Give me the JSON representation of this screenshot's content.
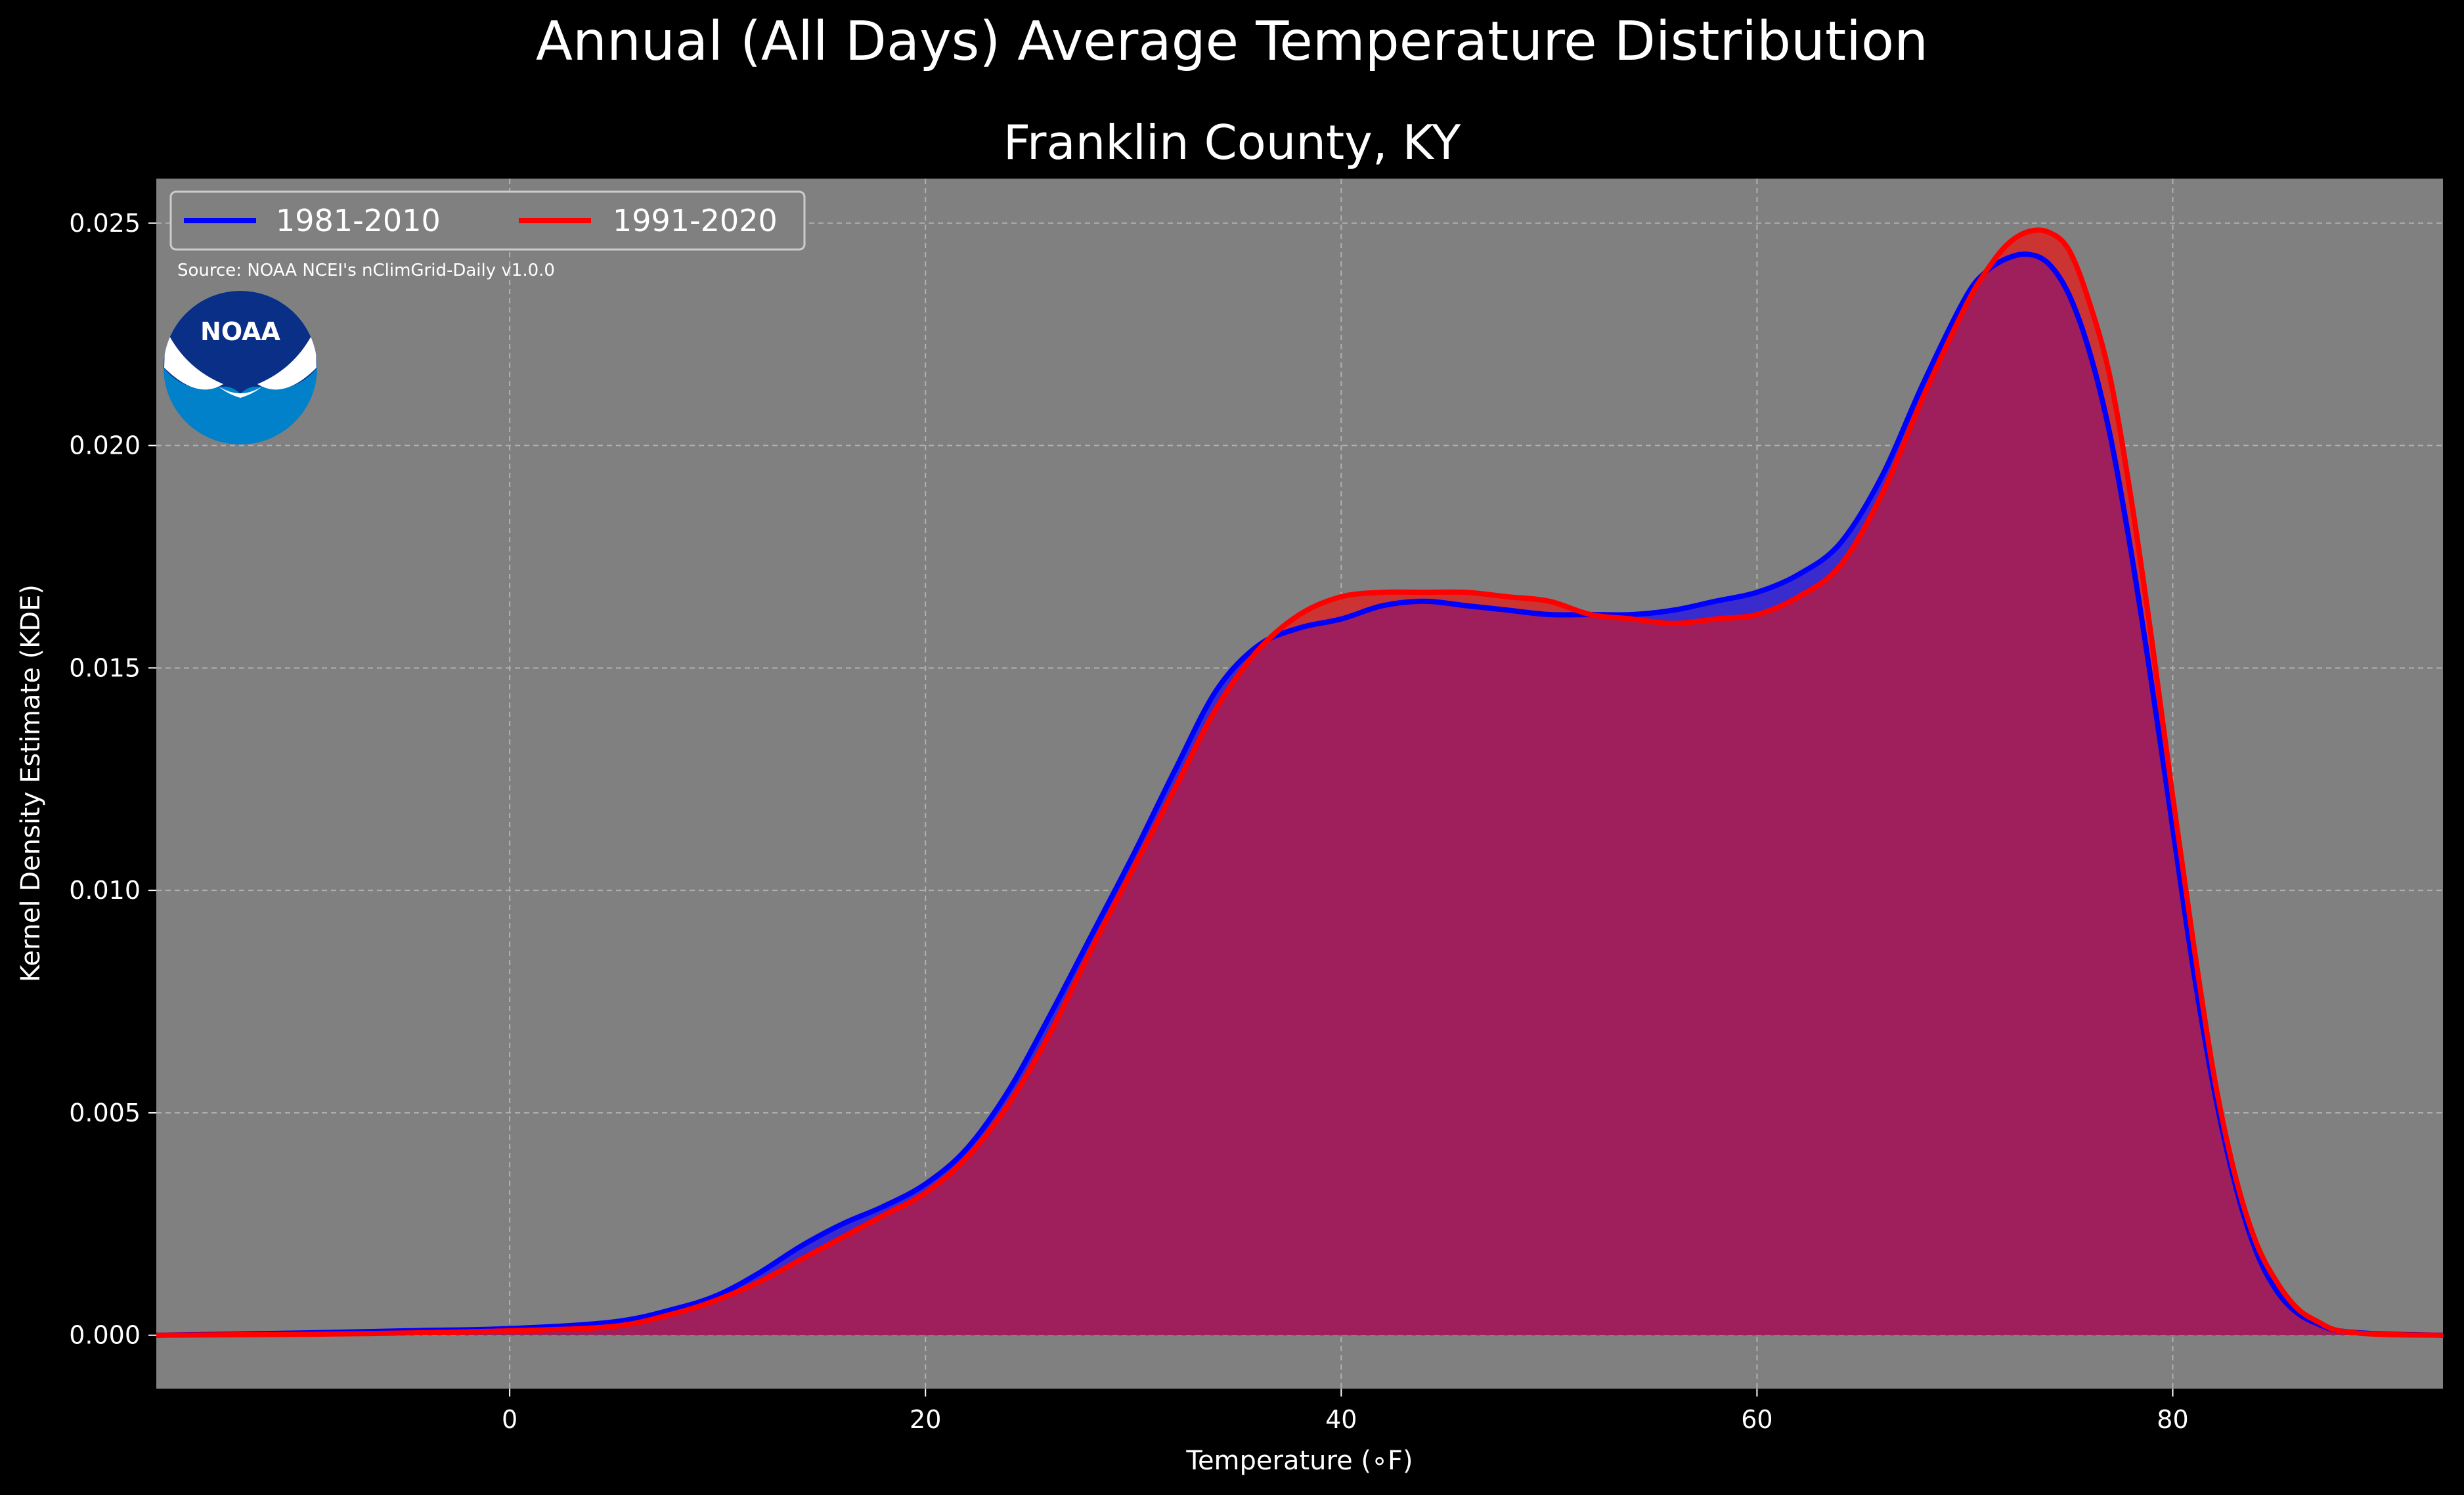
{
  "figure": {
    "suptitle": "Annual (All Days) Average Temperature Distribution",
    "source": "Source: NOAA NCEI's nClimGrid-Daily v1.0.0",
    "logo_text": "NOAA",
    "background_color": "#000000",
    "axes_color": "#808080"
  },
  "chart_data": {
    "type": "area",
    "title": "Franklin County, KY",
    "xlabel": "Temperature ($^\\circ$F)",
    "xlabel_display": "Temperature (∘F)",
    "ylabel": "Kernel Density Estimate (KDE)",
    "xlim": [
      -17,
      93
    ],
    "ylim": [
      -0.0012,
      0.026
    ],
    "xticks": [
      0,
      20,
      40,
      60,
      80
    ],
    "xtick_labels": [
      "0",
      "20",
      "40",
      "60",
      "80"
    ],
    "yticks": [
      0.0,
      0.005,
      0.01,
      0.015,
      0.02,
      0.025
    ],
    "ytick_labels": [
      "0.000",
      "0.005",
      "0.010",
      "0.015",
      "0.020",
      "0.025"
    ],
    "grid": true,
    "legend_position": "top-left",
    "series": [
      {
        "name": "1981-2010",
        "color": "#0000ff",
        "fill": "#3a2ccc",
        "x": [
          -17,
          -10,
          -5,
          0,
          5,
          8,
          10,
          12,
          14,
          16,
          18,
          20,
          22,
          24,
          26,
          28,
          30,
          32,
          34,
          36,
          38,
          40,
          42,
          44,
          46,
          48,
          50,
          52,
          54,
          56,
          58,
          60,
          62,
          64,
          66,
          68,
          70,
          71,
          72,
          73,
          74,
          75,
          76,
          77,
          78,
          79,
          80,
          81,
          82,
          83,
          84,
          85,
          86,
          87,
          88,
          90,
          93
        ],
        "y": [
          0.0,
          5e-05,
          0.0001,
          0.00015,
          0.0003,
          0.0006,
          0.0009,
          0.0014,
          0.002,
          0.0025,
          0.0029,
          0.0034,
          0.0042,
          0.0055,
          0.0072,
          0.009,
          0.0108,
          0.0127,
          0.0145,
          0.0155,
          0.0159,
          0.0161,
          0.0164,
          0.0165,
          0.0164,
          0.0163,
          0.0162,
          0.0162,
          0.0162,
          0.0163,
          0.0165,
          0.0167,
          0.0171,
          0.0178,
          0.0193,
          0.0214,
          0.0233,
          0.0239,
          0.0242,
          0.0243,
          0.0241,
          0.0234,
          0.0221,
          0.0202,
          0.0176,
          0.0146,
          0.0114,
          0.0082,
          0.0055,
          0.0034,
          0.0019,
          0.001,
          0.0005,
          0.00025,
          0.0001,
          3e-05,
          0.0
        ]
      },
      {
        "name": "1991-2020",
        "color": "#ff0000",
        "fill": "#cc3333",
        "x": [
          -17,
          -10,
          -5,
          0,
          5,
          8,
          10,
          12,
          14,
          16,
          18,
          20,
          22,
          24,
          26,
          28,
          30,
          32,
          34,
          36,
          38,
          40,
          42,
          44,
          46,
          48,
          50,
          52,
          54,
          56,
          58,
          60,
          62,
          64,
          66,
          68,
          70,
          71,
          72,
          73,
          74,
          75,
          76,
          77,
          78,
          79,
          80,
          81,
          82,
          83,
          84,
          85,
          86,
          87,
          88,
          90,
          93
        ],
        "y": [
          0.0,
          2e-05,
          5e-05,
          0.0001,
          0.0002,
          0.0005,
          0.0008,
          0.0012,
          0.0017,
          0.0022,
          0.0027,
          0.0032,
          0.004,
          0.0052,
          0.0068,
          0.0087,
          0.0105,
          0.0123,
          0.0141,
          0.0154,
          0.0162,
          0.0166,
          0.0167,
          0.0167,
          0.0167,
          0.0166,
          0.0165,
          0.0162,
          0.0161,
          0.016,
          0.0161,
          0.0162,
          0.0166,
          0.0173,
          0.0189,
          0.0211,
          0.0231,
          0.0239,
          0.0245,
          0.0248,
          0.0248,
          0.0244,
          0.0232,
          0.0215,
          0.0188,
          0.0156,
          0.0121,
          0.0088,
          0.0058,
          0.0036,
          0.0021,
          0.0012,
          0.0006,
          0.0003,
          0.0001,
          2e-05,
          0.0
        ]
      }
    ],
    "overlap_color": "#9e1f5c"
  }
}
